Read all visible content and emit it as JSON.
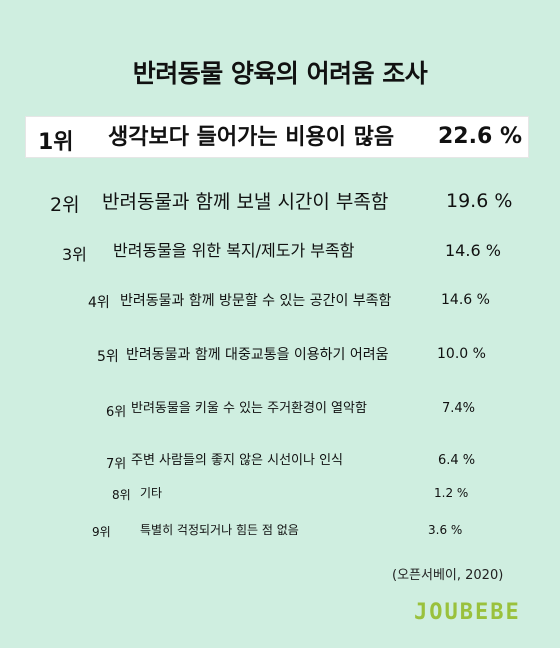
{
  "chart_data": {
    "type": "table",
    "title": "반려동물 양육의 어려움 조사",
    "rows": [
      {
        "rank": "1위",
        "label": "생각보다 들어가는 비용이 많음",
        "value": "22.6 %"
      },
      {
        "rank": "2위",
        "label": "반려동물과 함께 보낼 시간이 부족함",
        "value": "19.6 %"
      },
      {
        "rank": "3위",
        "label": "반려동물을 위한 복지/제도가 부족함",
        "value": "14.6 %"
      },
      {
        "rank": "4위",
        "label": "반려동물과 함께 방문할 수 있는 공간이 부족함",
        "value": "14.6 %"
      },
      {
        "rank": "5위",
        "label": "반려동물과 함께 대중교통을 이용하기 어려움",
        "value": "10.0 %"
      },
      {
        "rank": "6위",
        "label": "반려동물을 키울 수 있는 주거환경이 열악함",
        "value": "7.4%"
      },
      {
        "rank": "7위",
        "label": "주변 사람들의 좋지 않은 시선이나 인식",
        "value": "6.4 %"
      },
      {
        "rank": "8위",
        "label": "기타",
        "value": "1.2 %"
      },
      {
        "rank": "9위",
        "label": "특별히 걱정되거나 힘든 점 없음",
        "value": "3.6 %"
      }
    ],
    "source": "(오픈서베이, 2020)"
  },
  "brand": {
    "logo_text": "JOUBEBE",
    "colors": {
      "background": "#cfeee0",
      "logo_green": "#9ac13c",
      "logo_blue": "#3a8fd1"
    }
  }
}
